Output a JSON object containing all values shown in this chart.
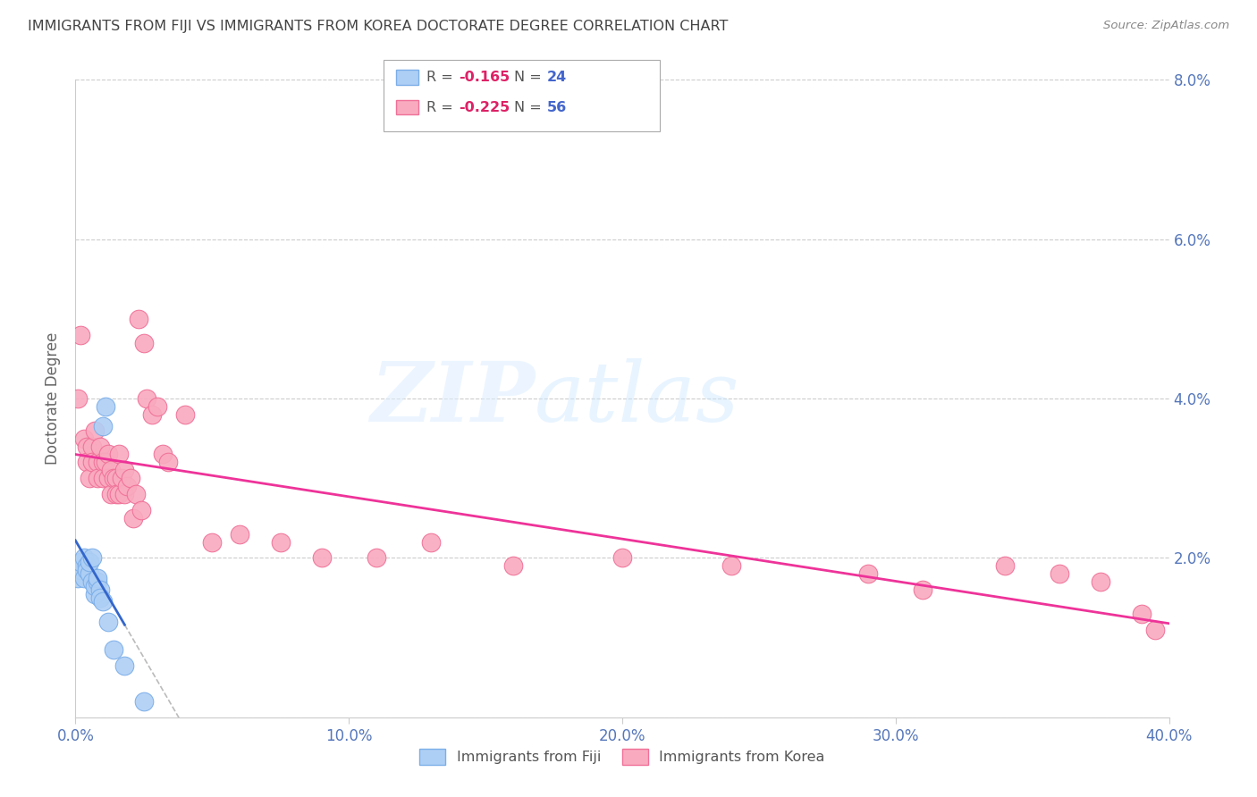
{
  "title": "IMMIGRANTS FROM FIJI VS IMMIGRANTS FROM KOREA DOCTORATE DEGREE CORRELATION CHART",
  "source": "Source: ZipAtlas.com",
  "ylabel": "Doctorate Degree",
  "xlim": [
    0.0,
    0.4
  ],
  "ylim": [
    0.0,
    0.08
  ],
  "xticks": [
    0.0,
    0.1,
    0.2,
    0.3,
    0.4
  ],
  "yticks": [
    0.0,
    0.02,
    0.04,
    0.06,
    0.08
  ],
  "ytick_labels_right": [
    "",
    "2.0%",
    "4.0%",
    "6.0%",
    "8.0%"
  ],
  "xtick_labels": [
    "0.0%",
    "10.0%",
    "20.0%",
    "30.0%",
    "40.0%"
  ],
  "fiji_color": "#AECFF5",
  "korea_color": "#F9AABF",
  "fiji_edge_color": "#7BAEE8",
  "korea_edge_color": "#F07098",
  "fiji_line_color": "#3366CC",
  "korea_line_color": "#EE3399",
  "dash_line_color": "#BBBBBB",
  "legend_fiji_R": "-0.165",
  "legend_fiji_N": "24",
  "legend_korea_R": "-0.225",
  "legend_korea_N": "56",
  "fiji_x": [
    0.001,
    0.002,
    0.002,
    0.003,
    0.003,
    0.004,
    0.004,
    0.005,
    0.005,
    0.006,
    0.006,
    0.007,
    0.007,
    0.008,
    0.008,
    0.009,
    0.009,
    0.01,
    0.01,
    0.011,
    0.012,
    0.014,
    0.018,
    0.025
  ],
  "fiji_y": [
    0.0175,
    0.0185,
    0.0195,
    0.0175,
    0.02,
    0.019,
    0.0185,
    0.018,
    0.0195,
    0.02,
    0.017,
    0.0155,
    0.0165,
    0.017,
    0.0175,
    0.016,
    0.015,
    0.0145,
    0.0365,
    0.039,
    0.012,
    0.0085,
    0.0065,
    0.002
  ],
  "korea_x": [
    0.001,
    0.002,
    0.003,
    0.004,
    0.004,
    0.005,
    0.006,
    0.006,
    0.007,
    0.008,
    0.008,
    0.009,
    0.01,
    0.01,
    0.011,
    0.012,
    0.012,
    0.013,
    0.013,
    0.014,
    0.015,
    0.015,
    0.016,
    0.016,
    0.017,
    0.018,
    0.018,
    0.019,
    0.02,
    0.021,
    0.022,
    0.023,
    0.024,
    0.025,
    0.026,
    0.028,
    0.03,
    0.032,
    0.034,
    0.04,
    0.05,
    0.06,
    0.075,
    0.09,
    0.11,
    0.13,
    0.16,
    0.2,
    0.24,
    0.29,
    0.31,
    0.34,
    0.36,
    0.375,
    0.39,
    0.395
  ],
  "korea_y": [
    0.04,
    0.048,
    0.035,
    0.034,
    0.032,
    0.03,
    0.034,
    0.032,
    0.036,
    0.032,
    0.03,
    0.034,
    0.032,
    0.03,
    0.032,
    0.03,
    0.033,
    0.031,
    0.028,
    0.03,
    0.03,
    0.028,
    0.033,
    0.028,
    0.03,
    0.031,
    0.028,
    0.029,
    0.03,
    0.025,
    0.028,
    0.05,
    0.026,
    0.047,
    0.04,
    0.038,
    0.039,
    0.033,
    0.032,
    0.038,
    0.022,
    0.023,
    0.022,
    0.02,
    0.02,
    0.022,
    0.019,
    0.02,
    0.019,
    0.018,
    0.016,
    0.019,
    0.018,
    0.017,
    0.013,
    0.011
  ],
  "watermark_zip": "ZIP",
  "watermark_atlas": "atlas",
  "background_color": "#ffffff",
  "grid_color": "#cccccc",
  "title_color": "#444444",
  "axis_label_color": "#5577BB",
  "tick_color": "#888888",
  "legend_R_color": "#DD2266",
  "legend_N_color": "#4466CC",
  "legend_label_color": "#555555"
}
